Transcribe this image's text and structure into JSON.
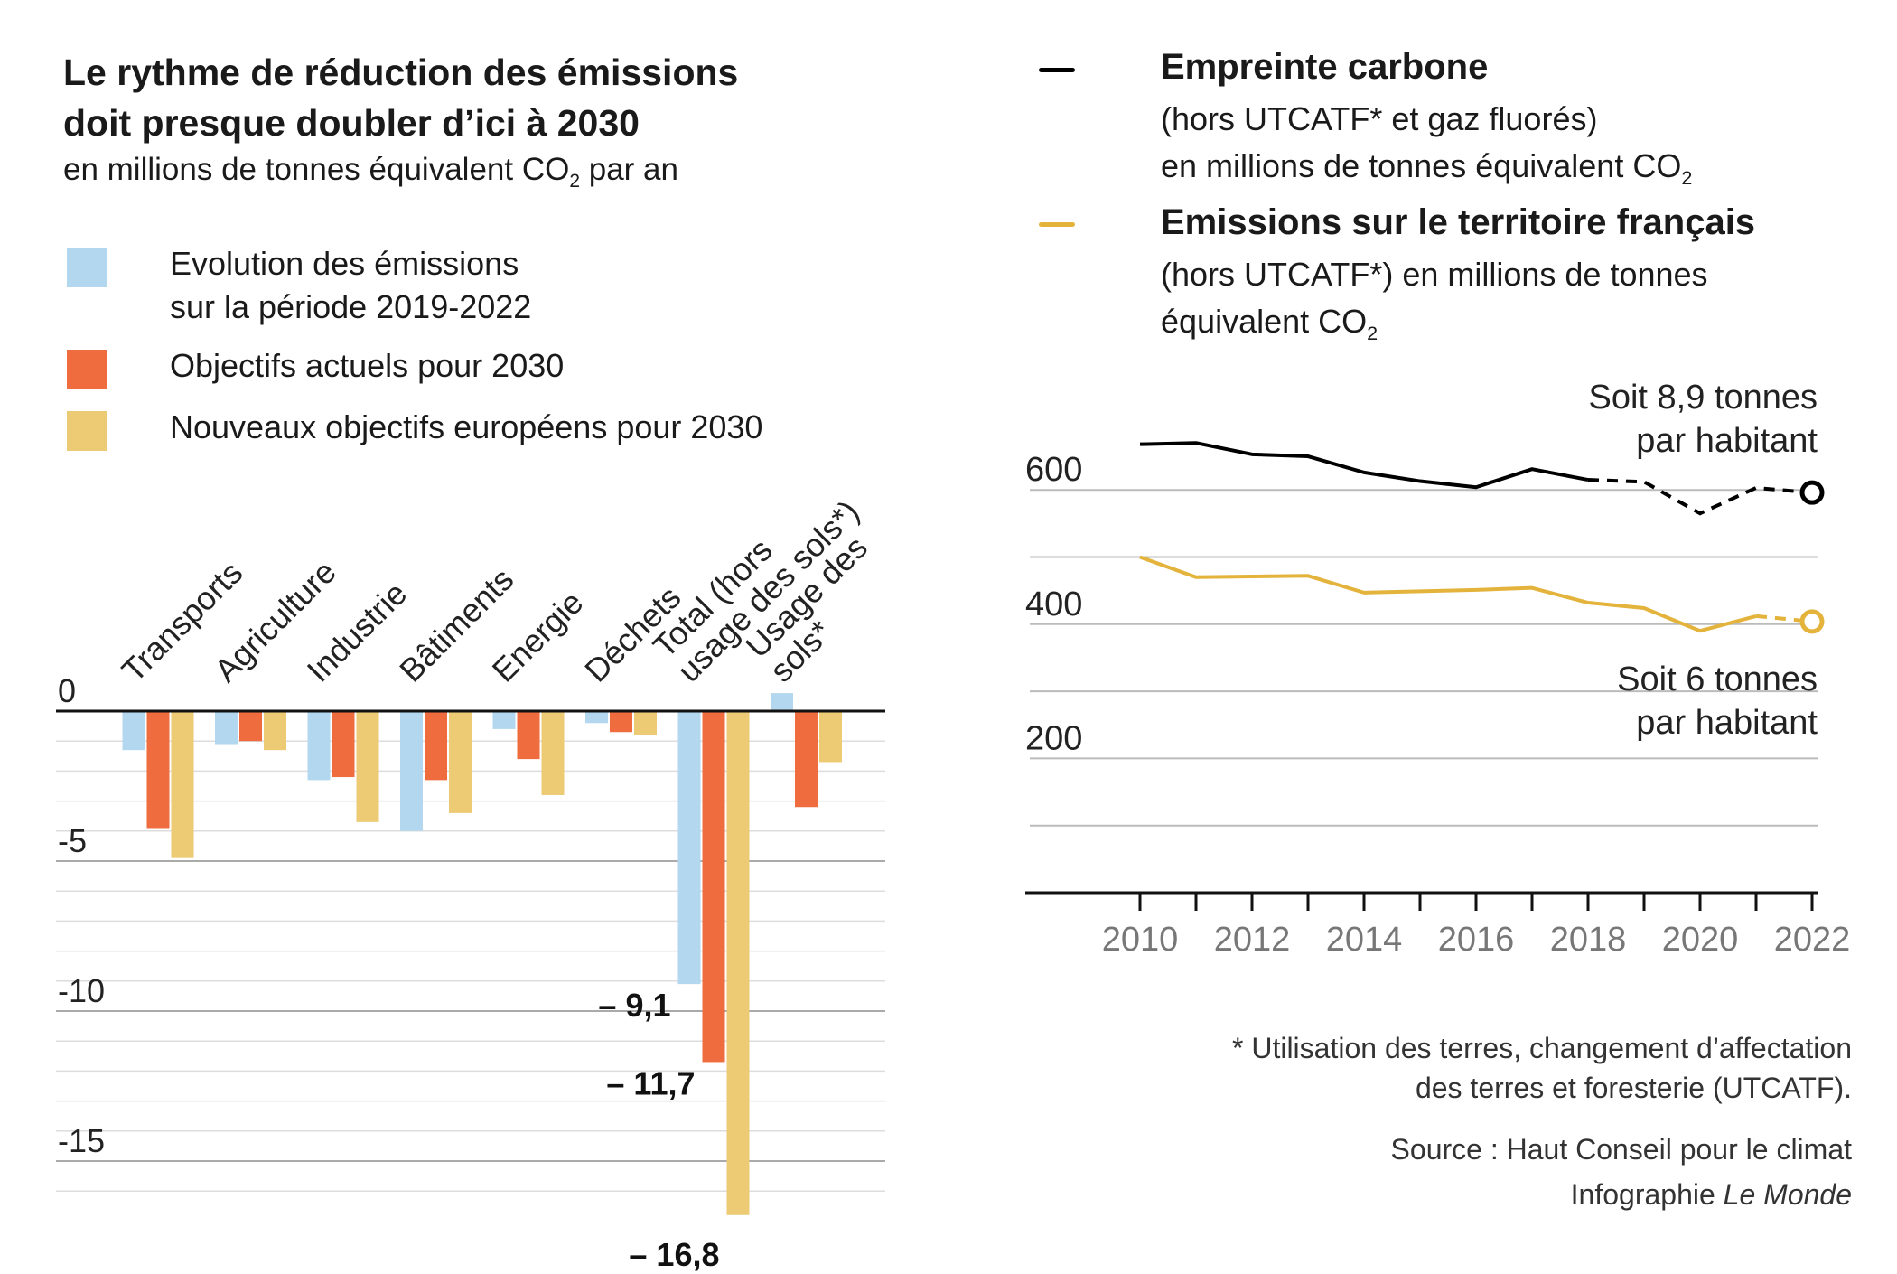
{
  "header": {
    "title_line1": "Le rythme de réduction des émissions",
    "title_line2": "doit presque doubler d’ici à 2030",
    "subtitle_pre": "en millions de tonnes équivalent CO",
    "subtitle_sub": "2",
    "subtitle_post": " par an"
  },
  "legend": {
    "items": [
      {
        "line1": "Evolution des émissions",
        "line2": "sur la période 2019-2022",
        "color": "#b3d7ee"
      },
      {
        "line1": "Objectifs actuels pour 2030",
        "line2": "",
        "color": "#ee6c3e"
      },
      {
        "line1": "Nouveaux objectifs européens pour 2030",
        "line2": "",
        "color": "#eccb74"
      }
    ]
  },
  "right_legend": {
    "black_title": "Empreinte carbone",
    "black_desc1": "(hors UTCATF* et gaz fluorés)",
    "black_desc2_pre": "en millions de tonnes équivalent CO",
    "black_desc2_sub": "2",
    "gold_title": "Emissions sur le territoire français",
    "gold_desc1": "(hors UTCATF*) en millions de tonnes",
    "gold_desc2_pre": "équivalent CO",
    "gold_desc2_sub": "2"
  },
  "chart_data": [
    {
      "type": "bar",
      "categories": [
        "Transports",
        "Agriculture",
        "Industrie",
        "Bâtiments",
        "Energie",
        "Déchets",
        "Total (hors usage des sols*)",
        "Usage des sols*"
      ],
      "category_lines": [
        [
          "Transports"
        ],
        [
          "Agriculture"
        ],
        [
          "Industrie"
        ],
        [
          "Bâtiments"
        ],
        [
          "Energie"
        ],
        [
          "Déchets"
        ],
        [
          "Total (hors",
          "usage des sols*)"
        ],
        [
          "Usage des",
          "sols*"
        ]
      ],
      "series": [
        {
          "name": "Evolution des émissions sur la période 2019-2022",
          "color": "#b3d7ee",
          "values": [
            -1.3,
            -1.1,
            -2.3,
            -4.0,
            -0.6,
            -0.4,
            -9.1,
            0.6
          ]
        },
        {
          "name": "Objectifs actuels pour 2030",
          "color": "#ee6c3e",
          "values": [
            -3.9,
            -1.0,
            -2.2,
            -2.3,
            -1.6,
            -0.7,
            -11.7,
            -3.2
          ]
        },
        {
          "name": "Nouveaux objectifs européens pour 2030",
          "color": "#eccb74",
          "values": [
            -4.9,
            -1.3,
            -3.7,
            -3.4,
            -2.8,
            -0.8,
            -16.8,
            -1.7
          ]
        }
      ],
      "ylim": [
        -17,
        1
      ],
      "ytick_labels": [
        "0",
        "-5",
        "-10",
        "-15"
      ],
      "yticks": [
        0,
        -5,
        -10,
        -15
      ],
      "data_labels": [
        "– 9,1",
        "– 11,7",
        "– 16,8"
      ]
    },
    {
      "type": "line",
      "x": [
        2010,
        2011,
        2012,
        2013,
        2014,
        2015,
        2016,
        2017,
        2018,
        2019,
        2020,
        2021,
        2022
      ],
      "xtick_labels": [
        "2010",
        "2012",
        "2014",
        "2016",
        "2018",
        "2020",
        "2022"
      ],
      "xticks": [
        2010,
        2012,
        2014,
        2016,
        2018,
        2020,
        2022
      ],
      "ytick_labels": [
        "600",
        "400",
        "200"
      ],
      "yticks": [
        600,
        400,
        200
      ],
      "ylim": [
        0,
        700
      ],
      "series": [
        {
          "name": "Empreinte carbone",
          "color": "#000000",
          "values": [
            668,
            670,
            653,
            650,
            626,
            613,
            604,
            631,
            615,
            612,
            565,
            603,
            596
          ],
          "dashed_from": 2018
        },
        {
          "name": "Emissions sur le territoire français",
          "color": "#e3b33b",
          "values": [
            500,
            470,
            471,
            472,
            447,
            449,
            451,
            454,
            432,
            424,
            390,
            412,
            404
          ],
          "dashed_from": 2021
        }
      ],
      "annotations": {
        "black_line1": "Soit 8,9 tonnes",
        "black_line2": "par habitant",
        "gold_line1": "Soit 6 tonnes",
        "gold_line2": "par habitant"
      }
    }
  ],
  "footer": {
    "note_line1": "* Utilisation des terres, changement d’affectation",
    "note_line2": "des terres et foresterie (UTCATF).",
    "source": "Source : Haut Conseil pour le climat",
    "credit_pre": "Infographie ",
    "credit_italic": "Le Monde"
  }
}
